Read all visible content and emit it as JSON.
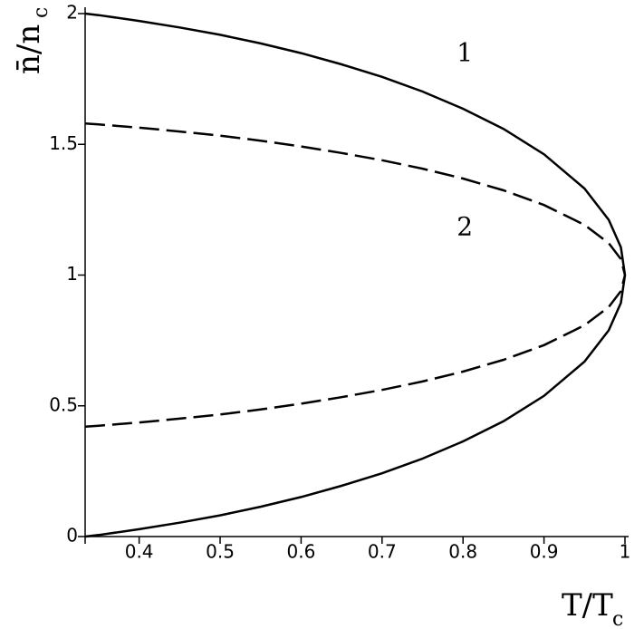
{
  "chart_data": {
    "type": "line",
    "x_label": "T/T",
    "x_label_sub": "c",
    "y_label": "n̄/n",
    "y_label_sub": "c",
    "x": [
      0.3333,
      0.35,
      0.4,
      0.45,
      0.5,
      0.55,
      0.6,
      0.65,
      0.7,
      0.75,
      0.8,
      0.85,
      0.9,
      0.95,
      0.98,
      0.995,
      1
    ],
    "series": [
      {
        "name": "1",
        "color": "#000000",
        "style": "solid",
        "upper": [
          2,
          1.994,
          1.972,
          1.947,
          1.919,
          1.886,
          1.849,
          1.806,
          1.758,
          1.702,
          1.636,
          1.559,
          1.462,
          1.331,
          1.211,
          1.106,
          1
        ],
        "lower": [
          0,
          0.006,
          0.028,
          0.053,
          0.081,
          0.114,
          0.151,
          0.194,
          0.242,
          0.298,
          0.364,
          0.441,
          0.538,
          0.669,
          0.789,
          0.894,
          1
        ]
      },
      {
        "name": "2",
        "color": "#000000",
        "style": "dashed",
        "upper": [
          1.58,
          1.576,
          1.564,
          1.549,
          1.533,
          1.514,
          1.492,
          1.467,
          1.439,
          1.407,
          1.369,
          1.324,
          1.268,
          1.192,
          1.122,
          1.061,
          1
        ],
        "lower": [
          0.42,
          0.424,
          0.436,
          0.451,
          0.467,
          0.486,
          0.508,
          0.533,
          0.561,
          0.593,
          0.631,
          0.676,
          0.732,
          0.808,
          0.878,
          0.939,
          1
        ]
      }
    ],
    "xlim": [
      0.3333,
      1
    ],
    "xticks": [
      0.4,
      0.5,
      0.6,
      0.7,
      0.8,
      0.9,
      1
    ],
    "ylim": [
      0,
      2
    ],
    "yticks": [
      0,
      0.5,
      1,
      1.5,
      2
    ],
    "grid": false
  }
}
